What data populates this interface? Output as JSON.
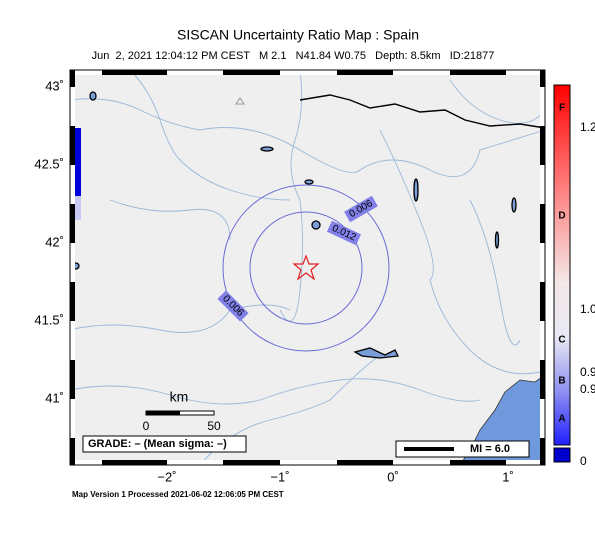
{
  "header": {
    "title": "SISCAN Uncertainty Ratio Map : Spain",
    "subtitle": "Jun  2, 2021 12:04:12 PM CEST   M 2.1   N41.84 W0.75   Depth: 8.5km   ID:21877"
  },
  "map": {
    "lat_labels": [
      "43˚",
      "42.5˚",
      "42˚",
      "41.5˚",
      "41˚"
    ],
    "lon_labels": [
      "−2˚",
      "−1˚",
      "0˚",
      "1˚"
    ],
    "contour_labels": [
      "0.006",
      "0.012",
      "0.006"
    ],
    "scale": {
      "unit": "km",
      "start": "0",
      "end": "50"
    },
    "grade": "GRADE: – (Mean sigma: –)",
    "mi": "MI = 6.0"
  },
  "colorbar": {
    "letters": [
      "F",
      "D",
      "C",
      "B",
      "A"
    ],
    "values": [
      "1.2",
      "1.0",
      "0.9",
      "0.9",
      "0"
    ]
  },
  "footer": "Map Version 1 Processed 2021-06-02 12:06:05 PM CEST"
}
